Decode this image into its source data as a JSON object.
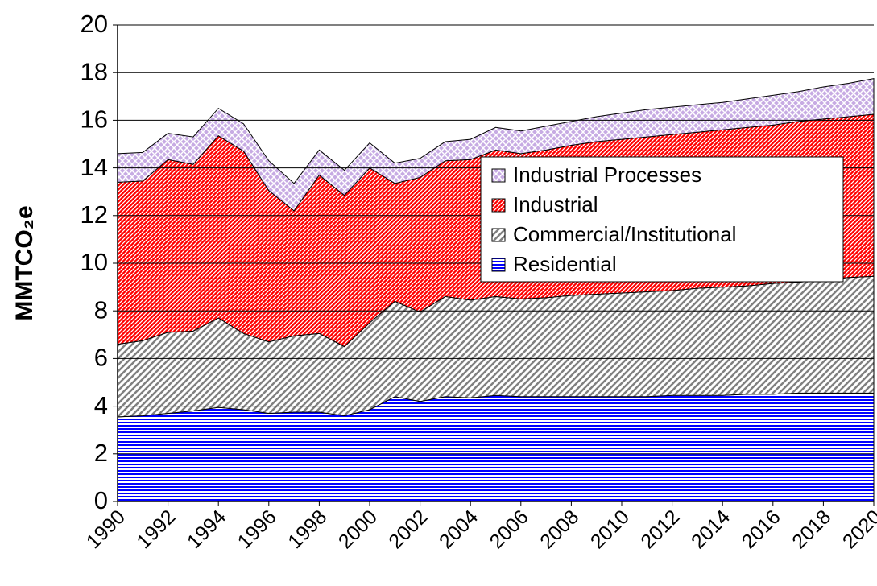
{
  "chart_data": {
    "type": "stacked_area",
    "y_label": "MMTCO₂e",
    "x": [
      1990,
      1991,
      1992,
      1993,
      1994,
      1995,
      1996,
      1997,
      1998,
      1999,
      2000,
      2001,
      2002,
      2003,
      2004,
      2005,
      2006,
      2007,
      2008,
      2009,
      2010,
      2011,
      2012,
      2013,
      2014,
      2015,
      2016,
      2017,
      2018,
      2019,
      2020
    ],
    "xlim": [
      1990,
      2020
    ],
    "xticks": [
      1990,
      1992,
      1994,
      1996,
      1998,
      2000,
      2002,
      2004,
      2006,
      2008,
      2010,
      2012,
      2014,
      2016,
      2018,
      2020
    ],
    "ylim": [
      0,
      20
    ],
    "yticks": [
      0,
      2,
      4,
      6,
      8,
      10,
      12,
      14,
      16,
      18,
      20
    ],
    "grid": true,
    "legend": "upper right",
    "series": [
      {
        "name": "Residential",
        "color": "#0000ff",
        "pattern": "horizontal",
        "values": [
          3.55,
          3.6,
          3.7,
          3.8,
          3.95,
          3.85,
          3.7,
          3.75,
          3.75,
          3.6,
          3.85,
          4.4,
          4.2,
          4.4,
          4.35,
          4.45,
          4.4,
          4.4,
          4.4,
          4.4,
          4.4,
          4.4,
          4.45,
          4.45,
          4.45,
          4.5,
          4.5,
          4.55,
          4.55,
          4.55,
          4.55
        ]
      },
      {
        "name": "Commercial/Institutional",
        "color": "#808080",
        "pattern": "diagonal",
        "values": [
          3.05,
          3.15,
          3.4,
          3.35,
          3.75,
          3.2,
          3.0,
          3.2,
          3.3,
          2.9,
          3.65,
          4.0,
          3.75,
          4.2,
          4.1,
          4.15,
          4.1,
          4.15,
          4.25,
          4.3,
          4.35,
          4.4,
          4.4,
          4.5,
          4.55,
          4.55,
          4.65,
          4.65,
          4.75,
          4.85,
          4.9
        ]
      },
      {
        "name": "Industrial",
        "color": "#ff0000",
        "pattern": "diagonal-dense",
        "values": [
          6.8,
          6.7,
          7.25,
          7.0,
          7.65,
          7.65,
          6.35,
          5.25,
          6.65,
          6.35,
          6.5,
          4.95,
          5.65,
          5.7,
          5.9,
          6.15,
          6.1,
          6.2,
          6.3,
          6.4,
          6.45,
          6.5,
          6.55,
          6.55,
          6.6,
          6.65,
          6.65,
          6.75,
          6.75,
          6.75,
          6.8
        ]
      },
      {
        "name": "Industrial Processes",
        "color": "#9966cc",
        "pattern": "crosshatch",
        "values": [
          1.2,
          1.2,
          1.1,
          1.15,
          1.15,
          1.15,
          1.25,
          1.15,
          1.05,
          1.05,
          1.05,
          0.85,
          0.8,
          0.8,
          0.85,
          0.95,
          0.95,
          1.0,
          1.0,
          1.05,
          1.1,
          1.15,
          1.15,
          1.15,
          1.15,
          1.2,
          1.25,
          1.25,
          1.35,
          1.4,
          1.5
        ]
      }
    ]
  }
}
